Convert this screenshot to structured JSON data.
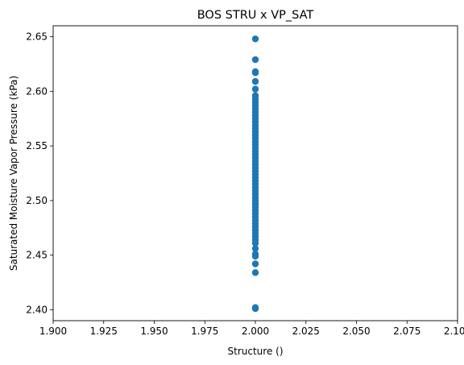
{
  "chart_data": {
    "type": "scatter",
    "title": "BOS STRU x VP_SAT",
    "xlabel": "Structure ()",
    "ylabel": "Saturated Moisture Vapor Pressure (kPa)",
    "xlim": [
      1.9,
      2.1
    ],
    "ylim": [
      2.39,
      2.66
    ],
    "xticks": [
      "1.900",
      "1.925",
      "1.950",
      "1.975",
      "2.000",
      "2.025",
      "2.050",
      "2.075",
      "2.100"
    ],
    "yticks": [
      "2.40",
      "2.45",
      "2.50",
      "2.55",
      "2.60",
      "2.65"
    ],
    "grid": false,
    "marker_color": "#1f77b4",
    "points": [
      [
        2.0,
        2.648
      ],
      [
        2.0,
        2.629
      ],
      [
        2.0,
        2.618
      ],
      [
        2.0,
        2.617
      ],
      [
        2.0,
        2.609
      ],
      [
        2.0,
        2.602
      ],
      [
        2.0,
        2.596
      ],
      [
        2.0,
        2.593
      ],
      [
        2.0,
        2.59
      ],
      [
        2.0,
        2.587
      ],
      [
        2.0,
        2.584
      ],
      [
        2.0,
        2.581
      ],
      [
        2.0,
        2.578
      ],
      [
        2.0,
        2.575
      ],
      [
        2.0,
        2.572
      ],
      [
        2.0,
        2.569
      ],
      [
        2.0,
        2.566
      ],
      [
        2.0,
        2.563
      ],
      [
        2.0,
        2.56
      ],
      [
        2.0,
        2.557
      ],
      [
        2.0,
        2.554
      ],
      [
        2.0,
        2.551
      ],
      [
        2.0,
        2.548
      ],
      [
        2.0,
        2.545
      ],
      [
        2.0,
        2.542
      ],
      [
        2.0,
        2.539
      ],
      [
        2.0,
        2.536
      ],
      [
        2.0,
        2.533
      ],
      [
        2.0,
        2.53
      ],
      [
        2.0,
        2.527
      ],
      [
        2.0,
        2.524
      ],
      [
        2.0,
        2.521
      ],
      [
        2.0,
        2.518
      ],
      [
        2.0,
        2.515
      ],
      [
        2.0,
        2.512
      ],
      [
        2.0,
        2.509
      ],
      [
        2.0,
        2.506
      ],
      [
        2.0,
        2.503
      ],
      [
        2.0,
        2.5
      ],
      [
        2.0,
        2.497
      ],
      [
        2.0,
        2.494
      ],
      [
        2.0,
        2.491
      ],
      [
        2.0,
        2.488
      ],
      [
        2.0,
        2.485
      ],
      [
        2.0,
        2.482
      ],
      [
        2.0,
        2.479
      ],
      [
        2.0,
        2.476
      ],
      [
        2.0,
        2.473
      ],
      [
        2.0,
        2.47
      ],
      [
        2.0,
        2.467
      ],
      [
        2.0,
        2.464
      ],
      [
        2.0,
        2.461
      ],
      [
        2.0,
        2.456
      ],
      [
        2.0,
        2.451
      ],
      [
        2.0,
        2.449
      ],
      [
        2.0,
        2.442
      ],
      [
        2.0,
        2.434
      ],
      [
        2.0,
        2.402
      ],
      [
        2.0,
        2.401
      ]
    ]
  }
}
